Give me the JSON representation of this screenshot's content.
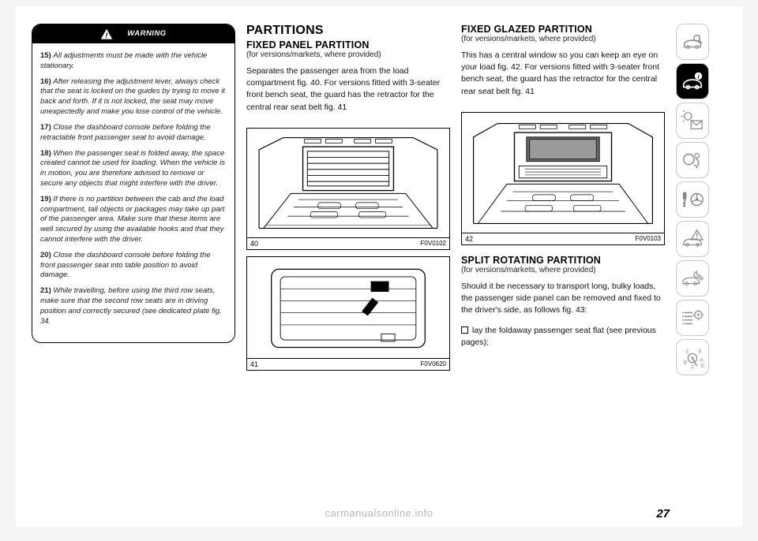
{
  "page_number": "27",
  "watermark": "carmanualsonline.info",
  "warning": {
    "header": "WARNING",
    "items": [
      {
        "n": "15)",
        "t": "All adjustments must be made with the vehicle stationary."
      },
      {
        "n": "16)",
        "t": "After releasing the adjustment lever, always check that the seat is locked on the guides by trying to move it back and forth. If it is not locked, the seat may move unexpectedly and make you lose control of the vehicle."
      },
      {
        "n": "17)",
        "t": "Close the dashboard console before folding the retractable front passenger seat to avoid damage."
      },
      {
        "n": "18)",
        "t": "When the passenger seat is folded away, the space created cannot be used for loading. When the vehicle is in motion, you are therefore advised to remove or secure any objects that might interfere with the driver."
      },
      {
        "n": "19)",
        "t": "If there is no partition between the cab and the load compartment, tall objects or packages may take up part of the passenger area. Make sure that these items are well secured by using the available hooks and that they cannot interfere with the driver."
      },
      {
        "n": "20)",
        "t": "Close the dashboard console before folding the front passenger seat into table position to avoid damage."
      },
      {
        "n": "21)",
        "t": "While travelling, before using the third row seats, make sure that the second row seats are in driving position and correctly secured (see dedicated plate fig. 34."
      }
    ]
  },
  "col2": {
    "h1": "PARTITIONS",
    "h2": "FIXED PANEL PARTITION",
    "sub": "(for versions/markets, where provided)",
    "para": "Separates the passenger area from the load compartment fig. 40. For versions fitted with 3-seater front bench seat, the guard has the retractor for the central rear seat belt fig. 41",
    "fig40_num": "40",
    "fig40_code": "F0V0102",
    "fig41_num": "41",
    "fig41_code": "F0V0620"
  },
  "col3": {
    "h2a": "FIXED GLAZED PARTITION",
    "sub_a": "(for versions/markets, where provided)",
    "para_a": "This has a central window so you can keep an eye on your load fig. 42. For versions fitted with 3-seater front bench seat, the guard has the retractor for the central rear seat belt fig. 41",
    "fig42_num": "42",
    "fig42_code": "F0V0103",
    "h2b": "SPLIT ROTATING PARTITION",
    "sub_b": "(for versions/markets, where provided)",
    "para_b": "Should it be necessary to transport long, bulky loads, the passenger side panel can be removed and fixed to the driver's side, as follows fig. 43:",
    "bullet": "lay the foldaway passenger seat flat (see previous pages);"
  },
  "sidebar_icons": [
    "car-search",
    "car-info",
    "light-mail",
    "airbag",
    "key-wheel",
    "car-warning",
    "car-wrench",
    "list-gear",
    "gear-letters"
  ],
  "sidebar_active_index": 1
}
